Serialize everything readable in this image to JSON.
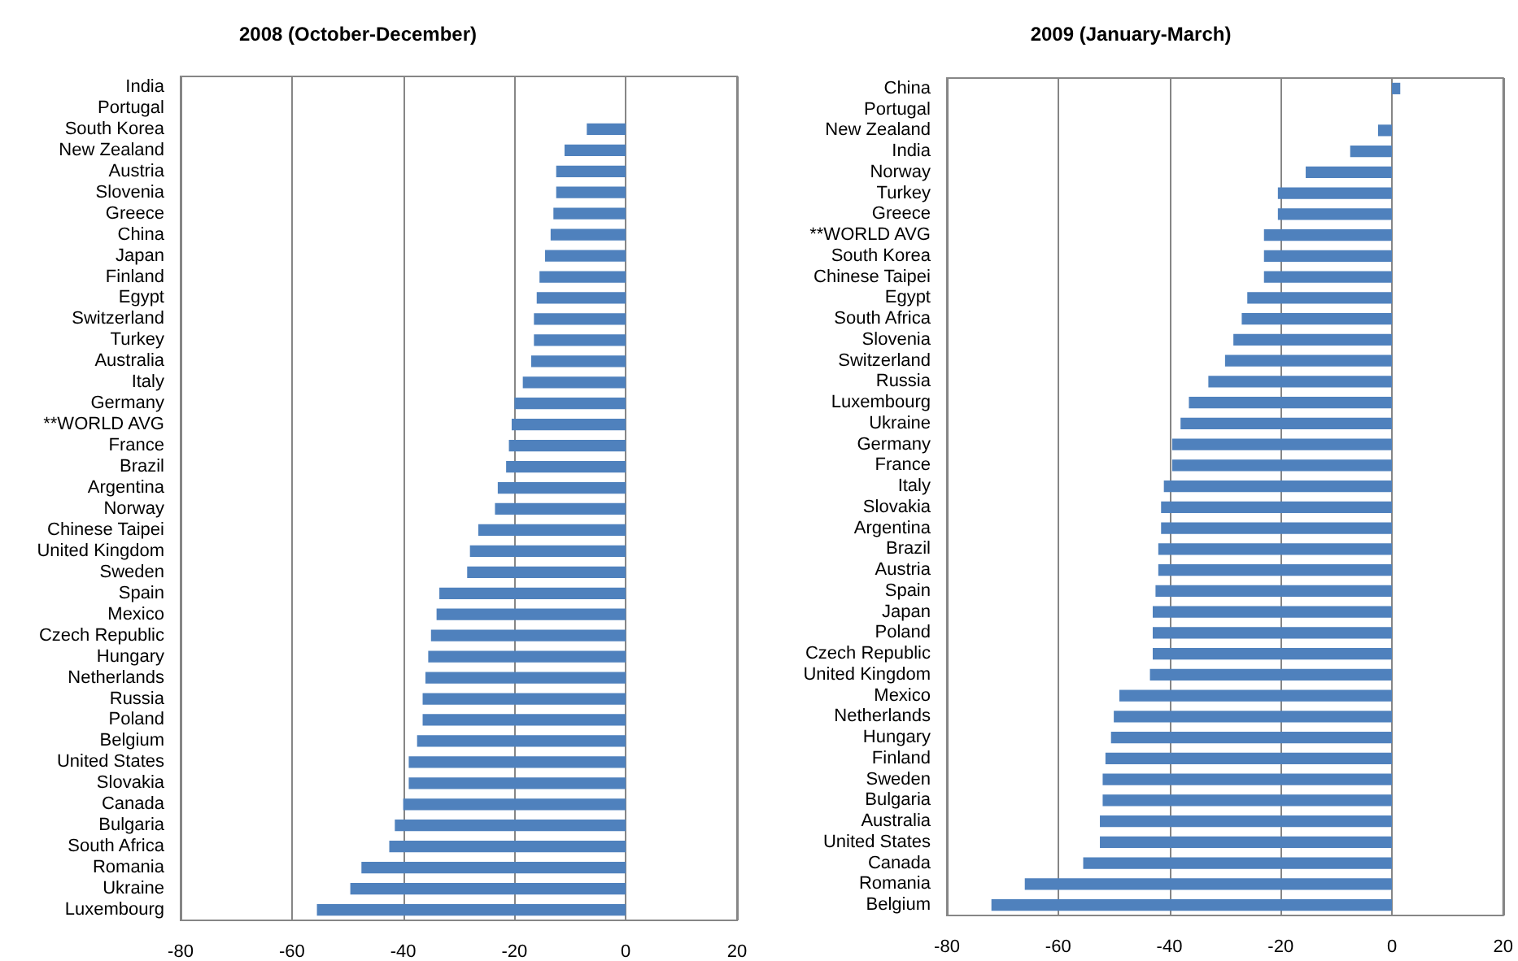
{
  "chart_data": [
    {
      "type": "bar",
      "orientation": "horizontal",
      "title": "2008 (October-December)",
      "categories": [
        "India",
        "Portugal",
        "South Korea",
        "New Zealand",
        "Austria",
        "Slovenia",
        "Greece",
        "China",
        "Japan",
        "Finland",
        "Egypt",
        "Switzerland",
        "Turkey",
        "Australia",
        "Italy",
        "Germany",
        "**WORLD AVG",
        "France",
        "Brazil",
        "Argentina",
        "Norway",
        "Chinese Taipei",
        "United Kingdom",
        "Sweden",
        "Spain",
        "Mexico",
        "Czech Republic",
        "Hungary",
        "Netherlands",
        "Russia",
        "Poland",
        "Belgium",
        "United States",
        "Slovakia",
        "Canada",
        "Bulgaria",
        "South Africa",
        "Romania",
        "Ukraine",
        "Luxembourg"
      ],
      "values": [
        0,
        0,
        -7,
        -11,
        -12.5,
        -12.5,
        -13,
        -13.5,
        -14.5,
        -15.5,
        -16,
        -16.5,
        -16.5,
        -17,
        -18.5,
        -20,
        -20.5,
        -21,
        -21.5,
        -23,
        -23.5,
        -26.5,
        -28,
        -28.5,
        -33.5,
        -34,
        -35,
        -35.5,
        -36,
        -36.5,
        -36.5,
        -37.5,
        -39,
        -39,
        -40,
        -41.5,
        -42.5,
        -47.5,
        -49.5,
        -55.5
      ],
      "color": "#4f81bd",
      "xlim": [
        -80,
        20
      ],
      "xticks": [
        -80,
        -60,
        -40,
        -20,
        0,
        20
      ],
      "grid": "x"
    },
    {
      "type": "bar",
      "orientation": "horizontal",
      "title": "2009 (January-March)",
      "categories": [
        "China",
        "Portugal",
        "New Zealand",
        "India",
        "Norway",
        "Turkey",
        "Greece",
        "**WORLD AVG",
        "South Korea",
        "Chinese Taipei",
        "Egypt",
        "South Africa",
        "Slovenia",
        "Switzerland",
        "Russia",
        "Luxembourg",
        "Ukraine",
        "Germany",
        "France",
        "Italy",
        "Slovakia",
        "Argentina",
        "Brazil",
        "Austria",
        "Spain",
        "Japan",
        "Poland",
        "Czech Republic",
        "United Kingdom",
        "Mexico",
        "Netherlands",
        "Hungary",
        "Finland",
        "Sweden",
        "Bulgaria",
        "Australia",
        "United States",
        "Canada",
        "Romania",
        "Belgium"
      ],
      "values": [
        1.5,
        0,
        -2.5,
        -7.5,
        -15.5,
        -20.5,
        -20.5,
        -23,
        -23,
        -23,
        -26,
        -27,
        -28.5,
        -30,
        -33,
        -36.5,
        -38,
        -39.5,
        -39.5,
        -41,
        -41.5,
        -41.5,
        -42,
        -42,
        -42.5,
        -43,
        -43,
        -43,
        -43.5,
        -49,
        -50,
        -50.5,
        -51.5,
        -52,
        -52,
        -52.5,
        -52.5,
        -55.5,
        -66,
        -72
      ],
      "color": "#4f81bd",
      "xlim": [
        -80,
        20
      ],
      "xticks": [
        -80,
        -60,
        -40,
        -20,
        0,
        20
      ],
      "grid": "x"
    }
  ]
}
